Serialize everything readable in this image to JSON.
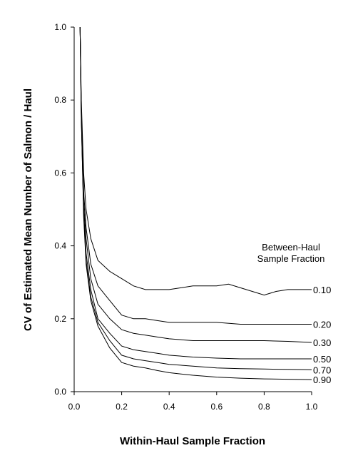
{
  "chart_data": {
    "type": "line",
    "xlabel": "Within-Haul Sample Fraction",
    "ylabel": "CV of Estimated Mean Number of Salmon / Haul",
    "xlim": [
      0.0,
      1.0
    ],
    "ylim": [
      0.0,
      1.0
    ],
    "x_ticks": [
      "0.0",
      "0.2",
      "0.4",
      "0.6",
      "0.8",
      "1.0"
    ],
    "y_ticks": [
      "0.0",
      "0.2",
      "0.4",
      "0.6",
      "0.8",
      "1.0"
    ],
    "legend_title_line1": "Between-Haul",
    "legend_title_line2": "Sample Fraction",
    "grid": false,
    "series": [
      {
        "name": "0.10",
        "x": [
          0.025,
          0.03,
          0.04,
          0.05,
          0.07,
          0.1,
          0.15,
          0.2,
          0.25,
          0.3,
          0.35,
          0.4,
          0.45,
          0.5,
          0.55,
          0.6,
          0.65,
          0.7,
          0.75,
          0.8,
          0.85,
          0.9,
          0.95,
          1.0
        ],
        "values": [
          1.0,
          0.8,
          0.6,
          0.5,
          0.42,
          0.36,
          0.33,
          0.31,
          0.29,
          0.28,
          0.28,
          0.28,
          0.285,
          0.29,
          0.29,
          0.29,
          0.295,
          0.285,
          0.275,
          0.265,
          0.275,
          0.28,
          0.28,
          0.28
        ]
      },
      {
        "name": "0.20",
        "x": [
          0.025,
          0.03,
          0.04,
          0.05,
          0.07,
          0.1,
          0.15,
          0.2,
          0.25,
          0.3,
          0.35,
          0.4,
          0.5,
          0.6,
          0.7,
          0.75,
          0.8,
          0.9,
          1.0
        ],
        "values": [
          1.0,
          0.78,
          0.55,
          0.45,
          0.35,
          0.29,
          0.25,
          0.21,
          0.2,
          0.2,
          0.195,
          0.19,
          0.19,
          0.19,
          0.185,
          0.185,
          0.185,
          0.185,
          0.185
        ]
      },
      {
        "name": "0.30",
        "x": [
          0.025,
          0.03,
          0.04,
          0.05,
          0.07,
          0.1,
          0.15,
          0.2,
          0.25,
          0.3,
          0.35,
          0.4,
          0.5,
          0.6,
          0.7,
          0.8,
          0.9,
          1.0
        ],
        "values": [
          1.0,
          0.77,
          0.52,
          0.42,
          0.31,
          0.24,
          0.2,
          0.17,
          0.16,
          0.155,
          0.15,
          0.145,
          0.14,
          0.14,
          0.14,
          0.14,
          0.138,
          0.135
        ]
      },
      {
        "name": "0.50",
        "x": [
          0.025,
          0.03,
          0.04,
          0.05,
          0.07,
          0.1,
          0.15,
          0.2,
          0.25,
          0.3,
          0.35,
          0.4,
          0.5,
          0.6,
          0.7,
          0.8,
          0.9,
          1.0
        ],
        "values": [
          1.0,
          0.76,
          0.5,
          0.38,
          0.28,
          0.2,
          0.16,
          0.125,
          0.115,
          0.11,
          0.105,
          0.1,
          0.095,
          0.092,
          0.09,
          0.09,
          0.09,
          0.09
        ]
      },
      {
        "name": "0.70",
        "x": [
          0.025,
          0.03,
          0.04,
          0.05,
          0.07,
          0.1,
          0.15,
          0.2,
          0.25,
          0.3,
          0.35,
          0.4,
          0.5,
          0.6,
          0.7,
          0.8,
          0.9,
          1.0
        ],
        "values": [
          1.0,
          0.75,
          0.49,
          0.36,
          0.26,
          0.19,
          0.14,
          0.1,
          0.09,
          0.085,
          0.08,
          0.075,
          0.07,
          0.065,
          0.063,
          0.062,
          0.061,
          0.06
        ]
      },
      {
        "name": "0.90",
        "x": [
          0.025,
          0.03,
          0.04,
          0.05,
          0.07,
          0.1,
          0.15,
          0.2,
          0.25,
          0.3,
          0.35,
          0.4,
          0.5,
          0.6,
          0.7,
          0.8,
          0.9,
          1.0
        ],
        "values": [
          1.0,
          0.75,
          0.48,
          0.35,
          0.25,
          0.18,
          0.12,
          0.08,
          0.07,
          0.065,
          0.058,
          0.052,
          0.045,
          0.04,
          0.037,
          0.035,
          0.034,
          0.033
        ]
      }
    ]
  }
}
